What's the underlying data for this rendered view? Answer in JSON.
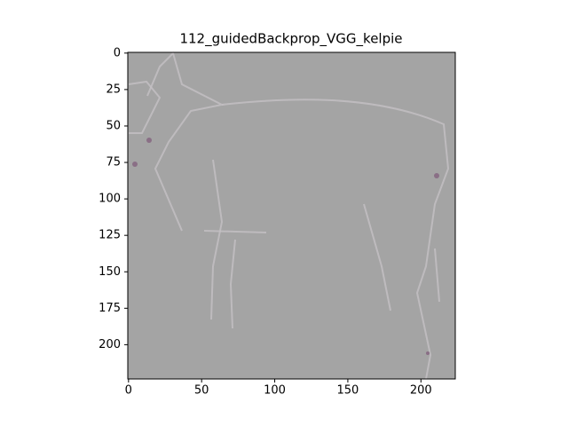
{
  "chart_data": {
    "type": "image",
    "title": "112_guidedBackprop_VGG_kelpie",
    "xlim": [
      -0.5,
      223.5
    ],
    "ylim": [
      223.5,
      -0.5
    ],
    "xticks": [
      0,
      50,
      100,
      150,
      200
    ],
    "yticks": [
      0,
      25,
      50,
      75,
      100,
      125,
      150,
      175,
      200
    ]
  }
}
